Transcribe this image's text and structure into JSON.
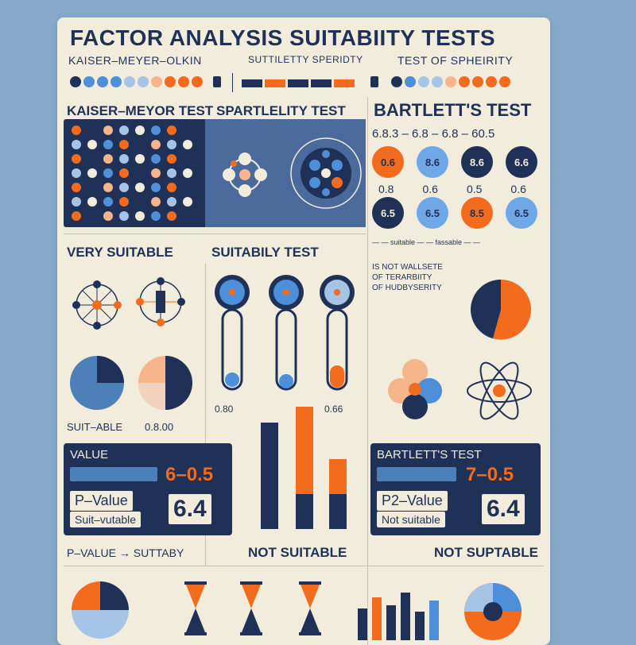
{
  "title": "FACTOR ANALYSIS SUITABIITY TESTS",
  "subtitle": {
    "left": "KAISER–MEYER–OLKIN",
    "middle": "SUTTILETTY SPERIDTY",
    "right": "TEST OF SPHEIRITY"
  },
  "sections": {
    "kmo_header": "KAISER–MEYOR TEST",
    "spartlett_header": "SPARTLELITY TEST",
    "bartlett_header": "BARTLETT'S TEST",
    "very_suitable": "VERY SUITABLE",
    "suitability_test": "SUITABILY TEST",
    "suitable_value": "SUIT–ABLE",
    "suitable_number": "0.8.00",
    "mid_number_left": "0.80",
    "mid_number_right": "0.66"
  },
  "bartlett": {
    "range": "6.8.3 – 6.8 – 6.8 – 60.5",
    "row1": [
      "0.6",
      "8.6",
      "8.6",
      "6.6"
    ],
    "row2_labels": [
      "0.8",
      "0.6",
      "0.5",
      "0.6"
    ],
    "row3": [
      "6.5",
      "6.5",
      "8.5",
      "6.5"
    ],
    "link_text": "— — suitable — — fassable — —",
    "notes": [
      "IS NOT WALLSETE",
      "OF TERARBIITY",
      "OF HUDBYSERITY"
    ]
  },
  "pvalue_left": {
    "label": "VALUE",
    "range": "6–0.5",
    "pv_label": "P–Value",
    "status": "Suit–vutable",
    "big": "6.4"
  },
  "pvalue_right": {
    "label": "BARTLETT'S TEST",
    "range": "7–0.5",
    "pv_label": "P2–Value",
    "status": "Not suitable",
    "big": "6.4"
  },
  "footer": {
    "left": "P–VALUE → SUTTABY",
    "middle": "NOT SUITABLE",
    "right": "NOT SUPTABLE"
  },
  "colors": {
    "navy": "#1f3157",
    "orange": "#f36b1c",
    "blue": "#4d8fd8",
    "cream": "#f2ecdd",
    "background": "#87a9c9"
  }
}
